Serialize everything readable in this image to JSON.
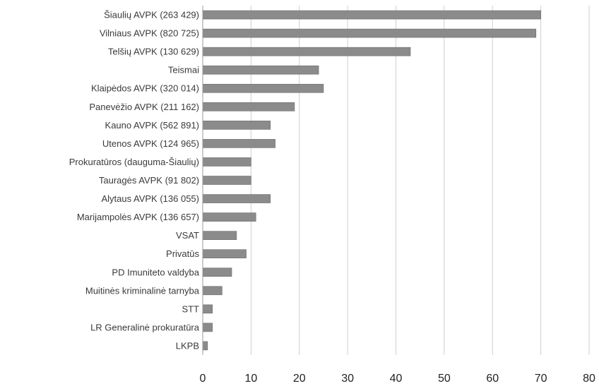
{
  "chart_data": {
    "type": "bar",
    "orientation": "horizontal",
    "categories": [
      "Šiaulių AVPK (263 429)",
      "Vilniaus AVPK (820 725)",
      "Telšių AVPK (130 629)",
      "Teismai",
      "Klaipėdos AVPK (320 014)",
      "Panevėžio AVPK (211 162)",
      "Kauno AVPK (562 891)",
      "Utenos AVPK (124 965)",
      "Prokuratūros (dauguma-Šiaulių)",
      "Tauragės AVPK (91 802)",
      "Alytaus AVPK (136 055)",
      "Marijampolės AVPK (136 657)",
      "VSAT",
      "Privatūs",
      "PD Imuniteto valdyba",
      "Muitinės kriminalinė tarnyba",
      "STT",
      "LR Generalinė prokuratūra",
      "LKPB"
    ],
    "values": [
      70,
      69,
      43,
      24,
      25,
      19,
      14,
      15,
      10,
      10,
      14,
      11,
      7,
      9,
      6,
      4,
      2,
      2,
      1
    ],
    "xlim": [
      0,
      80
    ],
    "xticks": [
      0,
      10,
      20,
      30,
      40,
      50,
      60,
      70,
      80
    ],
    "xtick_labels": [
      "0",
      "10",
      "20",
      "30",
      "40",
      "50",
      "60",
      "70",
      "80"
    ],
    "title": "",
    "xlabel": "",
    "ylabel": "",
    "grid": "vertical",
    "legend": "none",
    "bar_color": "#8b8b8b"
  }
}
